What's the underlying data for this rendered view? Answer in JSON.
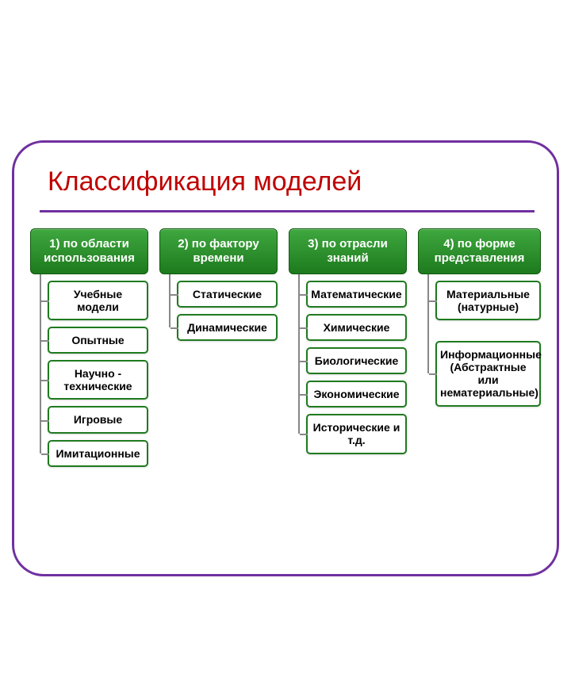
{
  "title": "Классификация моделей",
  "title_color": "#c00000",
  "underline_color": "#7030a0",
  "frame_border_color": "#7030a0",
  "background_color": "#ffffff",
  "header_bg_top": "#3fa83f",
  "header_bg_bottom": "#1d7a1d",
  "header_border": "#0f5a0f",
  "item_border_color": "#1f7a1f",
  "item_text_color": "#000000",
  "connector_color": "#888888",
  "title_fontsize": 34,
  "header_fontsize": 15,
  "item_fontsize": 14,
  "columns": [
    {
      "header": "1) по области использования",
      "items": [
        "Учебные модели",
        "Опытные",
        "Научно - технические",
        "Игровые",
        "Имитационные"
      ]
    },
    {
      "header": "2) по фактору времени",
      "items": [
        "Статические",
        "Динамические"
      ]
    },
    {
      "header": "3) по отрасли знаний",
      "items": [
        "Математические",
        "Химические",
        "Биологические",
        "Экономические",
        "Исторические и т.д."
      ]
    },
    {
      "header": "4) по форме представления",
      "items": [
        "Материальные (натурные)",
        "",
        "Информационные (Абстрактные или нематериальные)"
      ]
    }
  ]
}
